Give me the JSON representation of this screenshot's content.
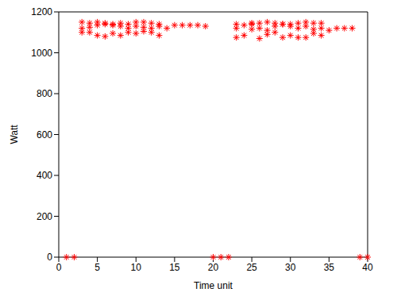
{
  "chart_data": {
    "type": "scatter",
    "x_label": "Time unit",
    "y_label": "Watt",
    "color": "#ff0000",
    "marker": "asterisk",
    "grid": false,
    "xlim": [
      0,
      40
    ],
    "xticks": [
      0,
      5,
      10,
      15,
      20,
      25,
      30,
      35,
      40
    ],
    "ylim": [
      0,
      1200
    ],
    "yticks": [
      0,
      200,
      400,
      600,
      800,
      1000,
      1200
    ],
    "x": [
      1,
      2,
      3,
      3,
      3,
      4,
      4,
      4,
      5,
      5,
      5,
      6,
      6,
      6,
      7,
      7,
      7,
      8,
      8,
      8,
      9,
      9,
      9,
      10,
      10,
      10,
      11,
      11,
      11,
      12,
      12,
      12,
      13,
      13,
      13,
      14,
      15,
      16,
      17,
      18,
      19,
      20,
      21,
      22,
      23,
      23,
      23,
      24,
      24,
      25,
      25,
      25,
      26,
      26,
      26,
      27,
      27,
      27,
      28,
      28,
      28,
      29,
      29,
      29,
      30,
      30,
      30,
      31,
      31,
      31,
      32,
      32,
      32,
      33,
      33,
      33,
      34,
      34,
      34,
      35,
      36,
      37,
      38,
      39,
      40
    ],
    "values": [
      0,
      0,
      1150,
      1120,
      1100,
      1145,
      1125,
      1100,
      1150,
      1135,
      1085,
      1145,
      1140,
      1080,
      1140,
      1135,
      1095,
      1145,
      1130,
      1085,
      1140,
      1120,
      1100,
      1150,
      1130,
      1095,
      1150,
      1125,
      1105,
      1145,
      1120,
      1100,
      1140,
      1130,
      1085,
      1120,
      1135,
      1135,
      1135,
      1135,
      1130,
      0,
      0,
      0,
      1140,
      1120,
      1075,
      1135,
      1085,
      1145,
      1140,
      1115,
      1145,
      1120,
      1070,
      1150,
      1110,
      1090,
      1145,
      1130,
      1100,
      1140,
      1140,
      1075,
      1140,
      1130,
      1085,
      1145,
      1120,
      1075,
      1150,
      1130,
      1075,
      1145,
      1115,
      1095,
      1145,
      1120,
      1085,
      1110,
      1120,
      1120,
      1120,
      0,
      0
    ]
  }
}
